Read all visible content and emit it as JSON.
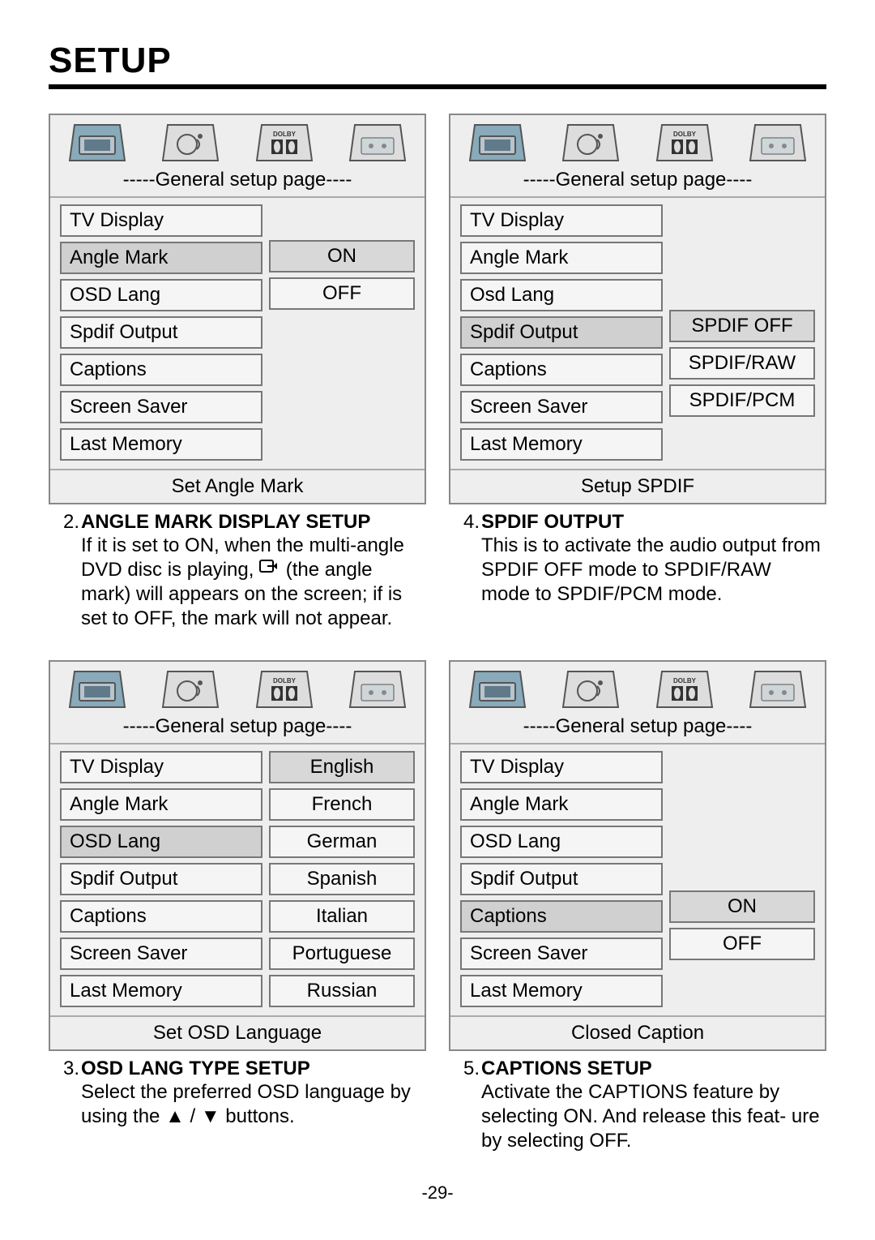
{
  "page_title": "SETUP",
  "page_number": "-29-",
  "colors": {
    "panel_bg": "#eeeeee",
    "border": "#888888",
    "selected_bg": "#d0d0d0",
    "text": "#000000"
  },
  "menu_header": "-----General setup page----",
  "left_items": [
    "TV Display",
    "Angle Mark",
    "OSD Lang",
    "Spdif Output",
    "Captions",
    "Screen Saver",
    "Last Memory"
  ],
  "panels": {
    "angle": {
      "selected_index": 1,
      "left_override": null,
      "options": [
        "ON",
        "OFF"
      ],
      "footer": "Set Angle Mark",
      "offset_class": "offset-a"
    },
    "spdif": {
      "selected_index": 3,
      "left_override": {
        "2": "Osd Lang"
      },
      "options": [
        "SPDIF OFF",
        "SPDIF/RAW",
        "SPDIF/PCM"
      ],
      "footer": "Setup SPDIF",
      "offset_class": "offset-b"
    },
    "osdlang": {
      "selected_index": 2,
      "left_override": null,
      "options": [
        "English",
        "French",
        "German",
        "Spanish",
        "Italian",
        "Portuguese",
        "Russian"
      ],
      "footer": "Set OSD Language",
      "offset_class": "offset-c"
    },
    "captions": {
      "selected_index": 4,
      "left_override": null,
      "options": [
        "ON",
        "OFF"
      ],
      "footer": "Closed Caption",
      "offset_class": "offset-d"
    }
  },
  "descriptions": {
    "angle": {
      "num": "2.",
      "title": "ANGLE MARK DISPLAY SETUP",
      "body_pre": "If it is set to ON, when the multi-angle DVD disc is playing, ",
      "body_post": " (the angle mark) will appears on the screen; if is set to OFF, the mark will not appear."
    },
    "spdif": {
      "num": "4.",
      "title": "SPDIF OUTPUT",
      "body": "This is to activate the audio output from SPDIF OFF mode to SPDIF/RAW mode to SPDIF/PCM mode."
    },
    "osdlang": {
      "num": "3.",
      "title": "OSD LANG TYPE SETUP",
      "body": "Select the preferred OSD language by using the ▲ / ▼  buttons."
    },
    "captions": {
      "num": "5.",
      "title": "CAPTIONS SETUP",
      "body": "Activate the CAPTIONS feature by selecting ON.  And release this feat- ure by selecting OFF."
    }
  }
}
